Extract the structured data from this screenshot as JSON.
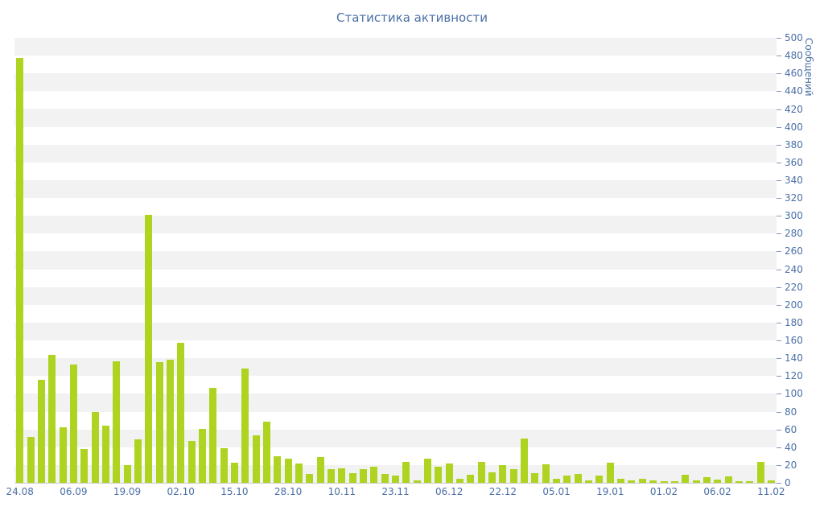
{
  "colors": {
    "bar": "#aed321",
    "text": "#4a6fa5",
    "stripe": "#f2f2f2",
    "axis_line": "#cccccc",
    "tick": "#8096bb"
  },
  "chart_data": {
    "type": "bar",
    "title": "Статистика активности",
    "xlabel": "",
    "ylabel": "Сообщений",
    "ylim": [
      0,
      500
    ],
    "y_tick_step": 20,
    "grid": "striped-bands",
    "legend": "none",
    "x_tick_labels": [
      "24.08",
      "06.09",
      "19.09",
      "02.10",
      "15.10",
      "28.10",
      "10.11",
      "23.11",
      "06.12",
      "22.12",
      "05.01",
      "19.01",
      "01.02",
      "06.02",
      "11.02"
    ],
    "x_label_every": 5,
    "values": [
      477,
      52,
      116,
      144,
      62,
      133,
      38,
      80,
      64,
      137,
      20,
      49,
      301,
      136,
      138,
      157,
      47,
      61,
      107,
      39,
      23,
      128,
      53,
      69,
      30,
      27,
      22,
      10,
      29,
      15,
      16,
      11,
      15,
      18,
      10,
      8,
      24,
      3,
      27,
      18,
      22,
      5,
      9,
      24,
      12,
      20,
      15,
      50,
      11,
      21,
      5,
      8,
      10,
      3,
      8,
      23,
      5,
      3,
      5,
      3,
      2,
      2,
      9,
      3,
      6,
      4,
      7,
      2,
      2,
      24,
      3
    ]
  }
}
